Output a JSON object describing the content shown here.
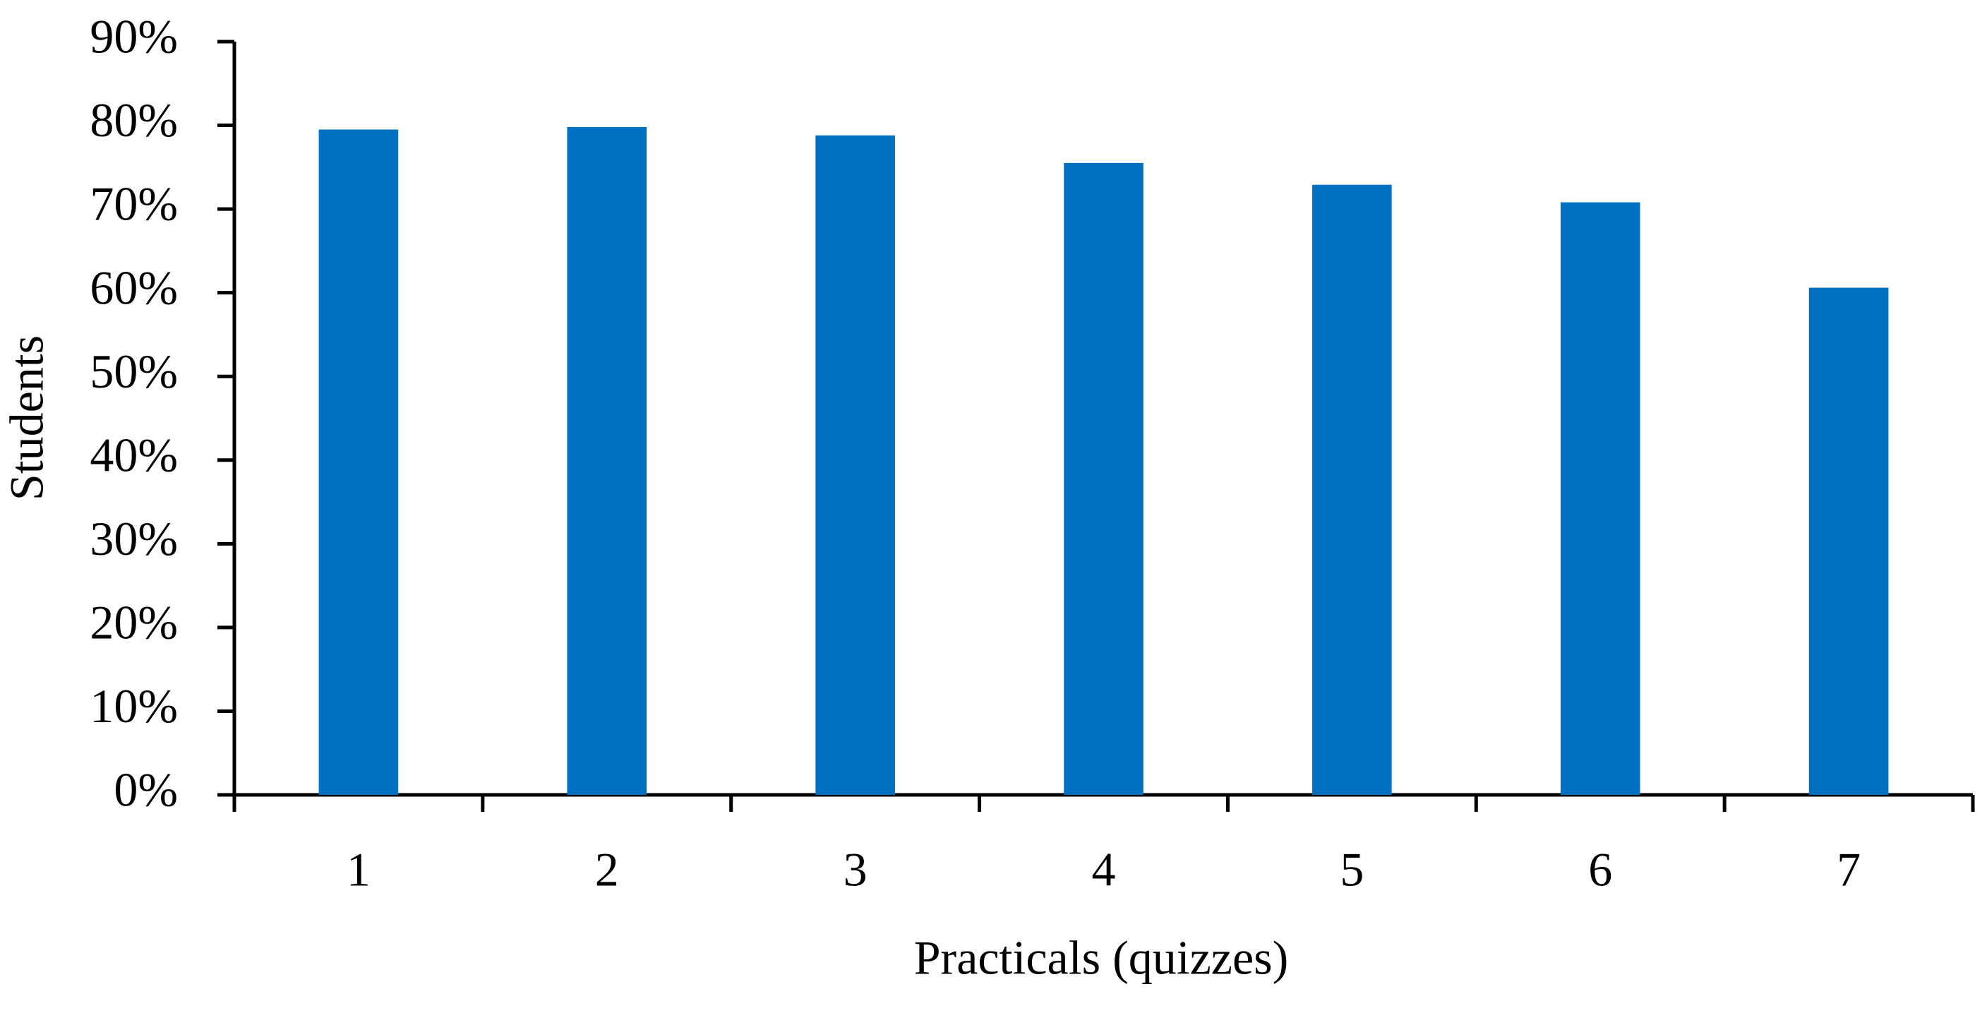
{
  "chart_data": {
    "type": "bar",
    "x_label": "Practicals (quizzes)",
    "y_label": "Students",
    "categories": [
      "1",
      "2",
      "3",
      "4",
      "5",
      "6",
      "7"
    ],
    "values": [
      79.5,
      79.8,
      78.8,
      75.5,
      72.9,
      70.8,
      60.6
    ],
    "color": "#0070c0",
    "ylim": [
      0,
      90
    ],
    "yticks": [
      {
        "value": 0,
        "label": "0%"
      },
      {
        "value": 10,
        "label": "10%"
      },
      {
        "value": 20,
        "label": "20%"
      },
      {
        "value": 30,
        "label": "30%"
      },
      {
        "value": 40,
        "label": "40%"
      },
      {
        "value": 50,
        "label": "50%"
      },
      {
        "value": 60,
        "label": "60%"
      },
      {
        "value": 70,
        "label": "70%"
      },
      {
        "value": 80,
        "label": "80%"
      },
      {
        "value": 90,
        "label": "90%"
      }
    ],
    "grid": false
  }
}
